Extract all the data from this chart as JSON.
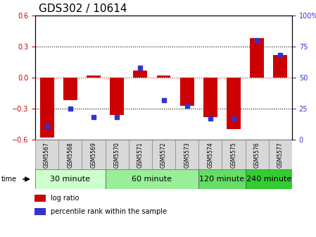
{
  "title": "GDS302 / 10614",
  "samples": [
    "GSM5567",
    "GSM5568",
    "GSM5569",
    "GSM5570",
    "GSM5571",
    "GSM5572",
    "GSM5573",
    "GSM5574",
    "GSM5575",
    "GSM5576",
    "GSM5577"
  ],
  "log_ratio": [
    -0.58,
    -0.22,
    0.02,
    -0.36,
    0.07,
    0.02,
    -0.27,
    -0.38,
    -0.5,
    0.38,
    0.22
  ],
  "percentile": [
    11,
    25,
    18,
    18,
    58,
    32,
    27,
    17,
    17,
    80,
    68
  ],
  "bar_color": "#cc0000",
  "dot_color": "#3333cc",
  "ylim_left": [
    -0.6,
    0.6
  ],
  "ylim_right": [
    0,
    100
  ],
  "yticks_left": [
    -0.6,
    -0.3,
    0.0,
    0.3,
    0.6
  ],
  "yticks_right": [
    0,
    25,
    50,
    75,
    100
  ],
  "groups": [
    {
      "label": "30 minute",
      "indices": [
        0,
        1,
        2
      ],
      "color": "#ccffcc"
    },
    {
      "label": "60 minute",
      "indices": [
        3,
        4,
        5,
        6
      ],
      "color": "#99ee99"
    },
    {
      "label": "120 minute",
      "indices": [
        7,
        8
      ],
      "color": "#66dd66"
    },
    {
      "label": "240 minute",
      "indices": [
        9,
        10
      ],
      "color": "#33cc33"
    }
  ],
  "legend_log": "log ratio",
  "legend_pct": "percentile rank within the sample",
  "title_fontsize": 11,
  "tick_fontsize": 7,
  "legend_fontsize": 7,
  "sample_label_fontsize": 5.5,
  "group_label_fontsize": 8
}
